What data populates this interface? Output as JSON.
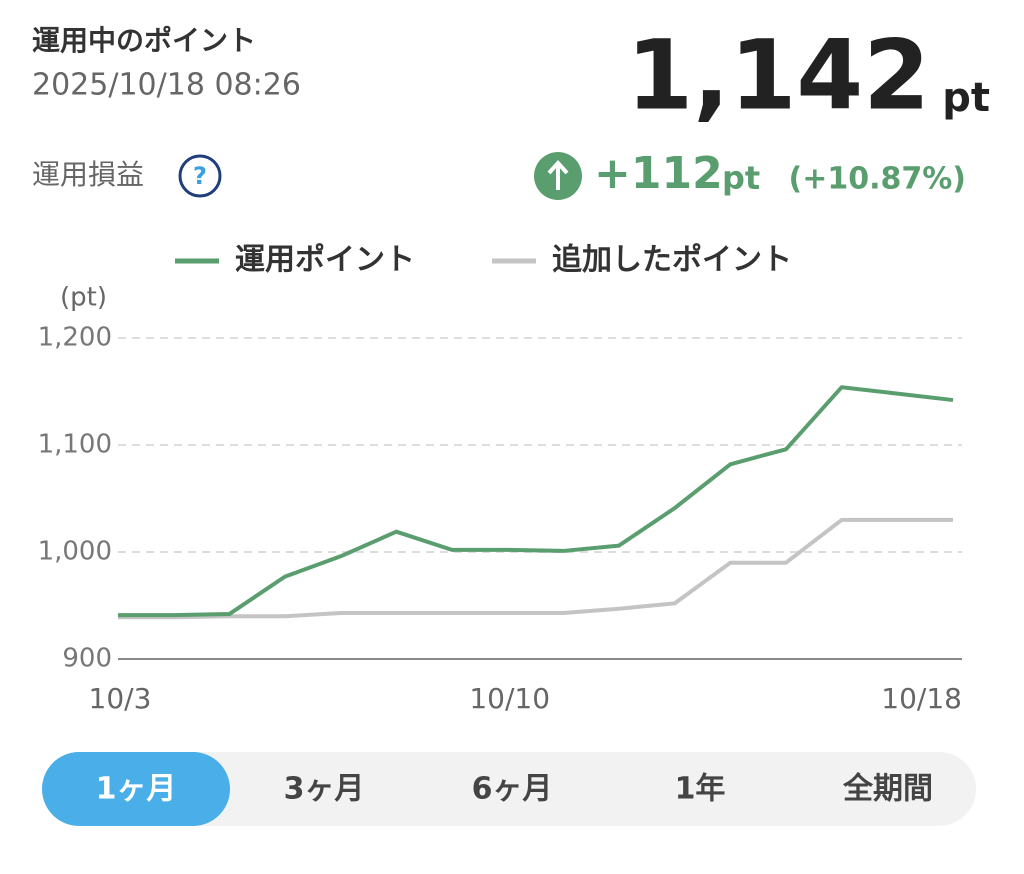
{
  "header": {
    "title": "運用中のポイント",
    "timestamp": "2025/10/18 08:26",
    "total": "1,142",
    "total_unit": "pt",
    "pl_label": "運用損益",
    "help_icon": "?",
    "change": "+112",
    "change_unit": "pt",
    "change_percent": "(+10.87%)"
  },
  "chart_data": {
    "type": "line",
    "y_unit_label": "(pt)",
    "categories": [
      "10/3",
      null,
      null,
      null,
      null,
      null,
      null,
      "10/10",
      null,
      null,
      null,
      null,
      null,
      null,
      null,
      "10/18"
    ],
    "series": [
      {
        "name": "運用ポイント",
        "color": "#5a9e6f",
        "values": [
          941,
          941,
          942,
          977,
          996,
          1019,
          1002,
          1002,
          1001,
          1006,
          1041,
          1082,
          1096,
          1154,
          1148,
          1142
        ]
      },
      {
        "name": "追加したポイント",
        "color": "#c4c4c4",
        "values": [
          939,
          939,
          940,
          940,
          943,
          943,
          943,
          943,
          943,
          947,
          952,
          990,
          990,
          1030,
          1030,
          1030
        ]
      }
    ],
    "ylim": [
      900,
      1200
    ],
    "yticks": [
      900,
      {
        "value": 1000,
        "label": "1,000"
      },
      {
        "value": 1100,
        "label": "1,100"
      },
      {
        "value": 1200,
        "label": "1,200"
      }
    ],
    "grid": true
  },
  "tabs": [
    "1ヶ月",
    "3ヶ月",
    "6ヶ月",
    "1年",
    "全期間"
  ],
  "selected_tab": 0
}
